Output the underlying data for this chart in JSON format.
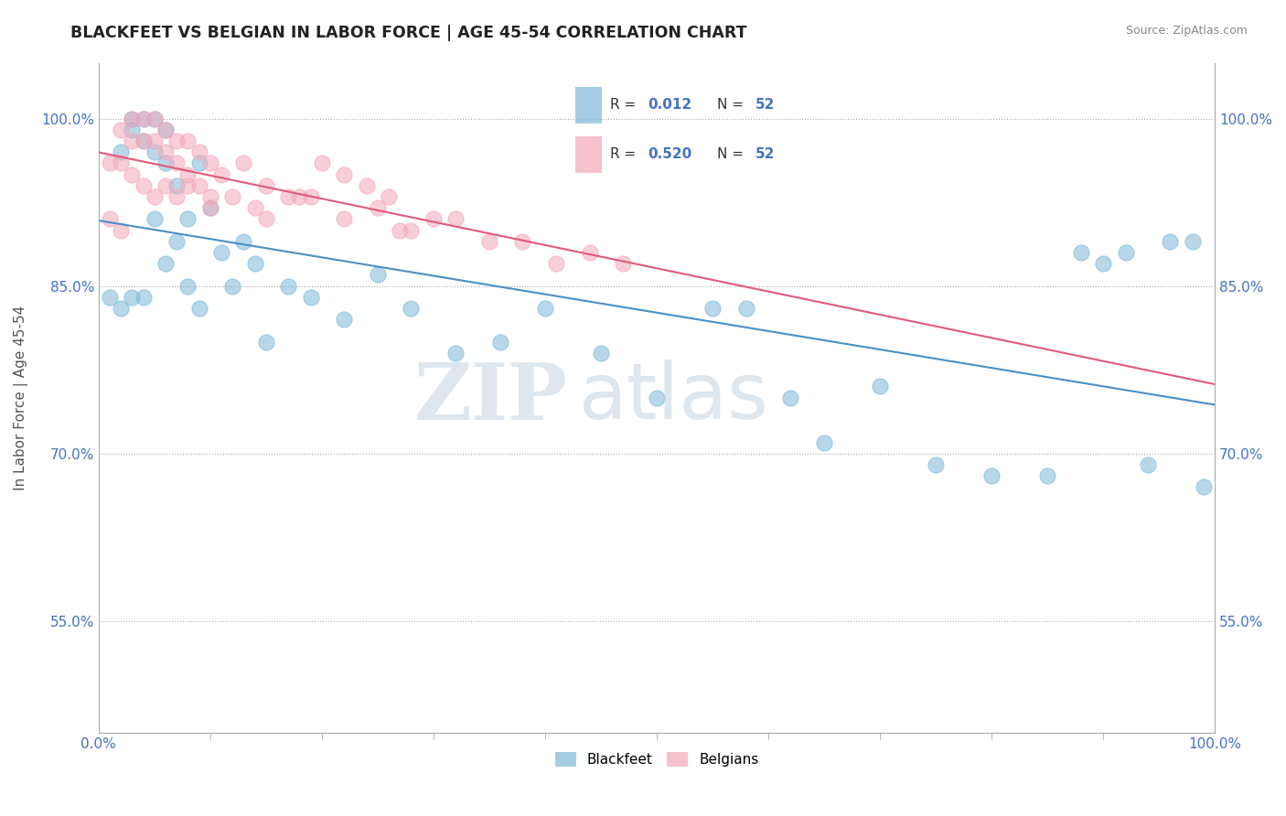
{
  "title": "BLACKFEET VS BELGIAN IN LABOR FORCE | AGE 45-54 CORRELATION CHART",
  "source": "Source: ZipAtlas.com",
  "ylabel": "In Labor Force | Age 45-54",
  "xlim": [
    0.0,
    1.0
  ],
  "ylim": [
    0.45,
    1.05
  ],
  "ytick_labels": [
    "55.0%",
    "70.0%",
    "85.0%",
    "100.0%"
  ],
  "ytick_values": [
    0.55,
    0.7,
    0.85,
    1.0
  ],
  "xtick_labels": [
    "0.0%",
    "100.0%"
  ],
  "xtick_values": [
    0.0,
    1.0
  ],
  "blackfeet_color": "#7EB8D9",
  "belgian_color": "#F4A7B9",
  "blackfeet_line_color": "#4A90C4",
  "belgian_line_color": "#E05A7A",
  "watermark_zip": "ZIP",
  "watermark_atlas": "atlas",
  "blackfeet_x": [
    0.01,
    0.02,
    0.02,
    0.03,
    0.03,
    0.03,
    0.04,
    0.04,
    0.04,
    0.05,
    0.05,
    0.05,
    0.06,
    0.06,
    0.06,
    0.07,
    0.07,
    0.08,
    0.08,
    0.09,
    0.09,
    0.1,
    0.11,
    0.12,
    0.13,
    0.14,
    0.15,
    0.17,
    0.19,
    0.22,
    0.25,
    0.28,
    0.32,
    0.36,
    0.4,
    0.45,
    0.5,
    0.55,
    0.58,
    0.62,
    0.65,
    0.7,
    0.75,
    0.8,
    0.85,
    0.88,
    0.9,
    0.92,
    0.94,
    0.96,
    0.98,
    0.99
  ],
  "blackfeet_y": [
    0.84,
    0.97,
    0.83,
    1.0,
    0.99,
    0.84,
    1.0,
    0.98,
    0.84,
    1.0,
    0.97,
    0.91,
    0.99,
    0.96,
    0.87,
    0.94,
    0.89,
    0.91,
    0.85,
    0.96,
    0.83,
    0.92,
    0.88,
    0.85,
    0.89,
    0.87,
    0.8,
    0.85,
    0.84,
    0.82,
    0.86,
    0.83,
    0.79,
    0.8,
    0.83,
    0.79,
    0.75,
    0.83,
    0.83,
    0.75,
    0.71,
    0.76,
    0.69,
    0.68,
    0.68,
    0.88,
    0.87,
    0.88,
    0.69,
    0.89,
    0.89,
    0.67
  ],
  "belgian_x": [
    0.01,
    0.01,
    0.02,
    0.02,
    0.02,
    0.03,
    0.03,
    0.03,
    0.04,
    0.04,
    0.04,
    0.05,
    0.05,
    0.05,
    0.06,
    0.06,
    0.06,
    0.07,
    0.07,
    0.07,
    0.08,
    0.08,
    0.09,
    0.09,
    0.1,
    0.1,
    0.11,
    0.12,
    0.13,
    0.14,
    0.15,
    0.17,
    0.19,
    0.22,
    0.25,
    0.28,
    0.32,
    0.38,
    0.44,
    0.47,
    0.22,
    0.26,
    0.3,
    0.35,
    0.41,
    0.2,
    0.24,
    0.15,
    0.18,
    0.27,
    0.1,
    0.08
  ],
  "belgian_y": [
    0.96,
    0.91,
    0.99,
    0.96,
    0.9,
    1.0,
    0.98,
    0.95,
    1.0,
    0.98,
    0.94,
    1.0,
    0.98,
    0.93,
    0.99,
    0.97,
    0.94,
    0.98,
    0.96,
    0.93,
    0.98,
    0.95,
    0.97,
    0.94,
    0.96,
    0.92,
    0.95,
    0.93,
    0.96,
    0.92,
    0.94,
    0.93,
    0.93,
    0.91,
    0.92,
    0.9,
    0.91,
    0.89,
    0.88,
    0.87,
    0.95,
    0.93,
    0.91,
    0.89,
    0.87,
    0.96,
    0.94,
    0.91,
    0.93,
    0.9,
    0.93,
    0.94
  ]
}
